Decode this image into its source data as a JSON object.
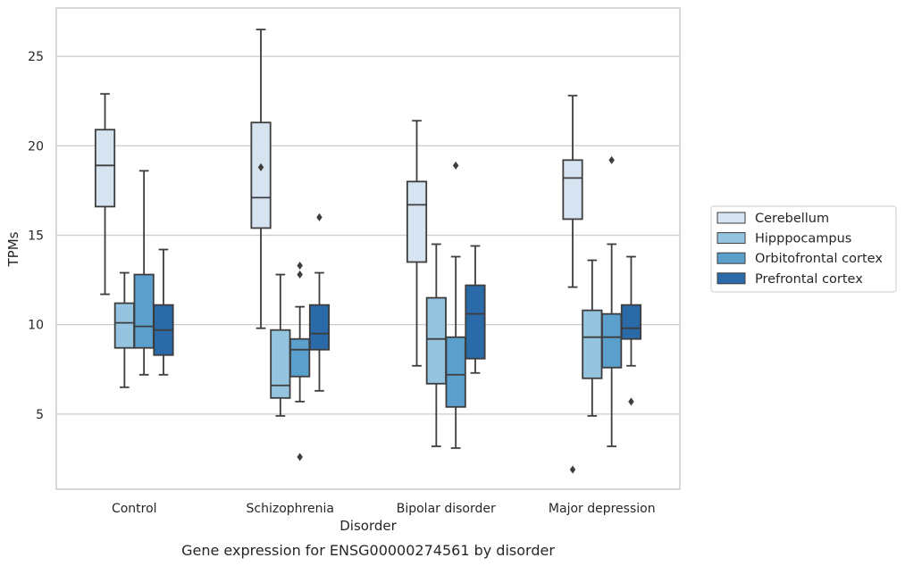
{
  "caption": "Gene expression for ENSG00000274561 by disorder",
  "chart_data": {
    "type": "box",
    "xlabel": "Disorder",
    "ylabel": "TPMs",
    "ylim": [
      0.8,
      27.7
    ],
    "yticks": [
      5,
      10,
      15,
      20,
      25
    ],
    "grid": true,
    "legend_position": "right",
    "categories": [
      "Control",
      "Schizophrenia",
      "Bipolar disorder",
      "Major depression"
    ],
    "series": [
      {
        "name": "Cerebellum",
        "color": "#d6e4f1",
        "boxes": [
          {
            "min": 11.7,
            "q1": 16.6,
            "median": 18.9,
            "q3": 20.9,
            "max": 22.9,
            "outliers": []
          },
          {
            "min": 9.8,
            "q1": 15.4,
            "median": 17.1,
            "q3": 21.3,
            "max": 26.5,
            "outliers": [
              18.8
            ]
          },
          {
            "min": 7.7,
            "q1": 13.5,
            "median": 16.7,
            "q3": 18.0,
            "max": 21.4,
            "outliers": []
          },
          {
            "min": 12.1,
            "q1": 15.9,
            "median": 18.2,
            "q3": 19.2,
            "max": 22.8,
            "outliers": [
              1.9
            ]
          }
        ]
      },
      {
        "name": "Hipppocampus",
        "color": "#94c4df",
        "boxes": [
          {
            "min": 6.5,
            "q1": 8.7,
            "median": 10.1,
            "q3": 11.2,
            "max": 12.9,
            "outliers": []
          },
          {
            "min": 4.9,
            "q1": 5.9,
            "median": 6.6,
            "q3": 9.7,
            "max": 12.8,
            "outliers": []
          },
          {
            "min": 3.2,
            "q1": 6.7,
            "median": 9.2,
            "q3": 11.5,
            "max": 14.5,
            "outliers": []
          },
          {
            "min": 4.9,
            "q1": 7.0,
            "median": 9.3,
            "q3": 10.8,
            "max": 13.6,
            "outliers": []
          }
        ]
      },
      {
        "name": "Orbitofrontal cortex",
        "color": "#5b9fcd",
        "boxes": [
          {
            "min": 7.2,
            "q1": 8.7,
            "median": 9.9,
            "q3": 12.8,
            "max": 18.6,
            "outliers": []
          },
          {
            "min": 5.7,
            "q1": 7.1,
            "median": 8.6,
            "q3": 9.2,
            "max": 11.0,
            "outliers": [
              13.3,
              12.8,
              2.6
            ]
          },
          {
            "min": 3.1,
            "q1": 5.4,
            "median": 7.2,
            "q3": 9.3,
            "max": 13.8,
            "outliers": [
              18.9
            ]
          },
          {
            "min": 3.2,
            "q1": 7.6,
            "median": 9.3,
            "q3": 10.6,
            "max": 14.5,
            "outliers": [
              19.2
            ]
          }
        ]
      },
      {
        "name": "Prefrontal cortex",
        "color": "#2a6aa8",
        "boxes": [
          {
            "min": 7.2,
            "q1": 8.3,
            "median": 9.7,
            "q3": 11.1,
            "max": 14.2,
            "outliers": []
          },
          {
            "min": 6.3,
            "q1": 8.6,
            "median": 9.5,
            "q3": 11.1,
            "max": 12.9,
            "outliers": [
              16.0
            ]
          },
          {
            "min": 7.3,
            "q1": 8.1,
            "median": 10.6,
            "q3": 12.2,
            "max": 14.4,
            "outliers": []
          },
          {
            "min": 7.7,
            "q1": 9.2,
            "median": 9.8,
            "q3": 11.1,
            "max": 13.8,
            "outliers": [
              5.7
            ]
          }
        ]
      }
    ]
  }
}
